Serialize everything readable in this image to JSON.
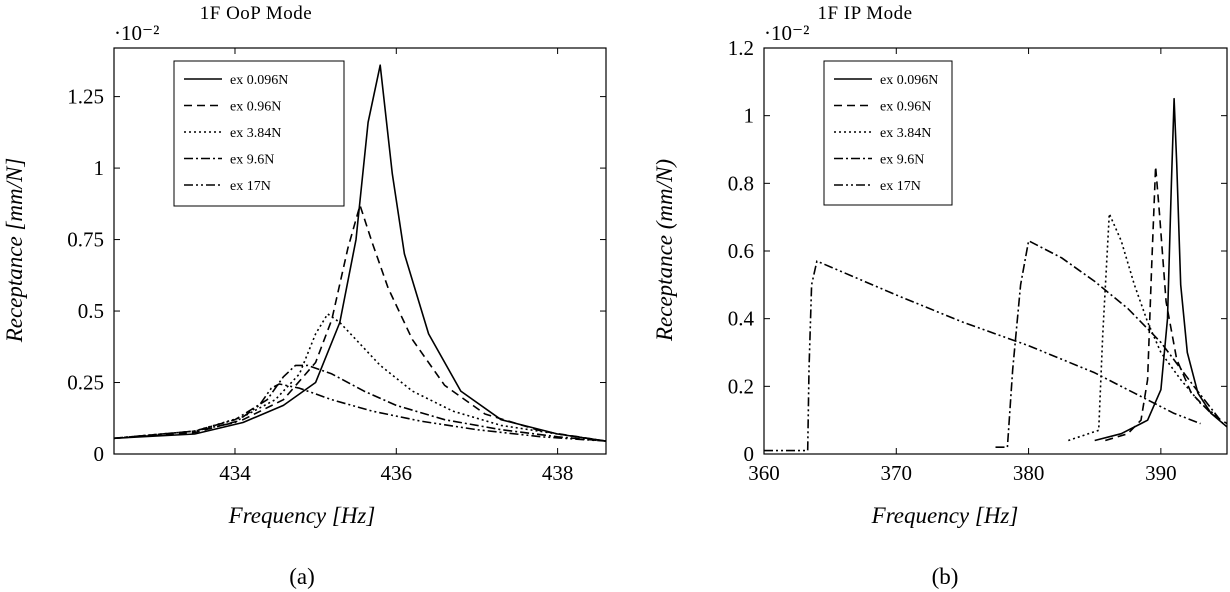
{
  "figure": {
    "captions": [
      "(a)",
      "(b)"
    ]
  },
  "chart_data": [
    {
      "type": "line",
      "title": "1F OoP Mode",
      "xlabel": "Frequency [Hz]",
      "ylabel": "Receptance [mm/N]",
      "y_scale_label": "·10⁻²",
      "xlim": [
        432.5,
        438.6
      ],
      "ylim": [
        0,
        1.42
      ],
      "xticks": [
        434,
        436,
        438
      ],
      "xtick_labels": [
        "434",
        "436",
        "438"
      ],
      "yticks": [
        0,
        0.25,
        0.5,
        0.75,
        1,
        1.25
      ],
      "ytick_labels": [
        "0",
        "0.25",
        "0.5",
        "0.75",
        "1",
        "1.25"
      ],
      "legend_position": "top-left",
      "series": [
        {
          "name": "ex 0.096N",
          "dash": "solid",
          "x": [
            432.5,
            433.5,
            434.1,
            434.6,
            435.0,
            435.3,
            435.5,
            435.65,
            435.8,
            435.95,
            436.1,
            436.4,
            436.8,
            437.3,
            438.0,
            438.6
          ],
          "y": [
            0.055,
            0.07,
            0.11,
            0.17,
            0.25,
            0.46,
            0.75,
            1.16,
            1.36,
            0.98,
            0.7,
            0.42,
            0.22,
            0.12,
            0.07,
            0.045
          ]
        },
        {
          "name": "ex 0.96N",
          "dash": "8,5",
          "x": [
            432.5,
            433.5,
            434.1,
            434.6,
            435.0,
            435.2,
            435.4,
            435.55,
            435.7,
            435.9,
            436.2,
            436.6,
            437.1,
            437.8,
            438.6
          ],
          "y": [
            0.055,
            0.075,
            0.12,
            0.19,
            0.32,
            0.47,
            0.72,
            0.87,
            0.74,
            0.58,
            0.4,
            0.24,
            0.14,
            0.08,
            0.045
          ]
        },
        {
          "name": "ex 3.84N",
          "dash": "2,3",
          "x": [
            432.5,
            433.5,
            434.1,
            434.5,
            434.8,
            435.0,
            435.15,
            435.3,
            435.5,
            435.8,
            436.2,
            436.7,
            437.3,
            438.0,
            438.6
          ],
          "y": [
            0.055,
            0.08,
            0.13,
            0.19,
            0.28,
            0.42,
            0.49,
            0.46,
            0.4,
            0.31,
            0.22,
            0.15,
            0.1,
            0.07,
            0.045
          ]
        },
        {
          "name": "ex 9.6N",
          "dash": "9,3,2,3",
          "x": [
            432.5,
            433.5,
            434.0,
            434.4,
            434.6,
            434.75,
            434.9,
            435.2,
            435.6,
            436.0,
            436.6,
            437.3,
            438.0,
            438.6
          ],
          "y": [
            0.055,
            0.08,
            0.12,
            0.19,
            0.27,
            0.31,
            0.31,
            0.28,
            0.22,
            0.17,
            0.12,
            0.085,
            0.06,
            0.045
          ]
        },
        {
          "name": "ex 17N",
          "dash": "9,3,2,3,2,3",
          "x": [
            432.5,
            433.5,
            434.0,
            434.3,
            434.45,
            434.55,
            434.8,
            435.2,
            435.7,
            436.3,
            437.0,
            437.8,
            438.6
          ],
          "y": [
            0.055,
            0.08,
            0.11,
            0.17,
            0.23,
            0.245,
            0.23,
            0.19,
            0.15,
            0.115,
            0.085,
            0.06,
            0.045
          ]
        }
      ]
    },
    {
      "type": "line",
      "title": "1F IP Mode",
      "xlabel": "Frequency [Hz]",
      "ylabel": "Receptance (mm/N)",
      "y_scale_label": "·10⁻²",
      "xlim": [
        360,
        395
      ],
      "ylim": [
        0,
        1.2
      ],
      "xticks": [
        360,
        370,
        380,
        390
      ],
      "xtick_labels": [
        "360",
        "370",
        "380",
        "390"
      ],
      "yticks": [
        0,
        0.2,
        0.4,
        0.6,
        0.8,
        1.0,
        1.2
      ],
      "ytick_labels": [
        "0",
        "0.2",
        "0.4",
        "0.6",
        "0.8",
        "1",
        "1.2"
      ],
      "legend_position": "top-left",
      "series": [
        {
          "name": "ex 0.096N",
          "dash": "solid",
          "x": [
            385.0,
            387.0,
            389.0,
            390.0,
            390.5,
            390.8,
            391.0,
            391.2,
            391.5,
            392.0,
            392.8,
            393.8,
            395.0
          ],
          "y": [
            0.04,
            0.06,
            0.1,
            0.19,
            0.4,
            0.8,
            1.05,
            0.86,
            0.5,
            0.3,
            0.18,
            0.12,
            0.08
          ]
        },
        {
          "name": "ex 0.96N",
          "dash": "8,5",
          "x": [
            385.8,
            387.5,
            388.5,
            389.0,
            389.3,
            389.6,
            389.9,
            390.4,
            391.2,
            392.3,
            393.8,
            395.0
          ],
          "y": [
            0.04,
            0.06,
            0.1,
            0.22,
            0.55,
            0.85,
            0.71,
            0.45,
            0.28,
            0.18,
            0.12,
            0.09
          ]
        },
        {
          "name": "ex 3.84N",
          "dash": "2,3",
          "x": [
            383.0,
            385.3,
            385.6,
            386.1,
            387.0,
            388.0,
            389.0,
            390.0,
            391.5,
            393.0,
            394.3
          ],
          "y": [
            0.04,
            0.07,
            0.35,
            0.71,
            0.63,
            0.5,
            0.39,
            0.3,
            0.22,
            0.15,
            0.11
          ]
        },
        {
          "name": "ex 9.6N",
          "dash": "9,3,2,3",
          "x": [
            377.5,
            378.4,
            378.8,
            379.4,
            380.0,
            382.5,
            385.0,
            387.5,
            390.0,
            392.5,
            394.7
          ],
          "y": [
            0.02,
            0.02,
            0.25,
            0.5,
            0.63,
            0.58,
            0.51,
            0.43,
            0.33,
            0.2,
            0.09
          ]
        },
        {
          "name": "ex 17N",
          "dash": "9,3,2,3,2,3",
          "x": [
            360.0,
            363.3,
            363.4,
            363.6,
            364.0,
            370.0,
            375.0,
            380.0,
            385.0,
            388.0,
            391.0,
            393.0
          ],
          "y": [
            0.01,
            0.01,
            0.25,
            0.5,
            0.57,
            0.47,
            0.39,
            0.32,
            0.24,
            0.18,
            0.12,
            0.09
          ]
        }
      ]
    }
  ]
}
